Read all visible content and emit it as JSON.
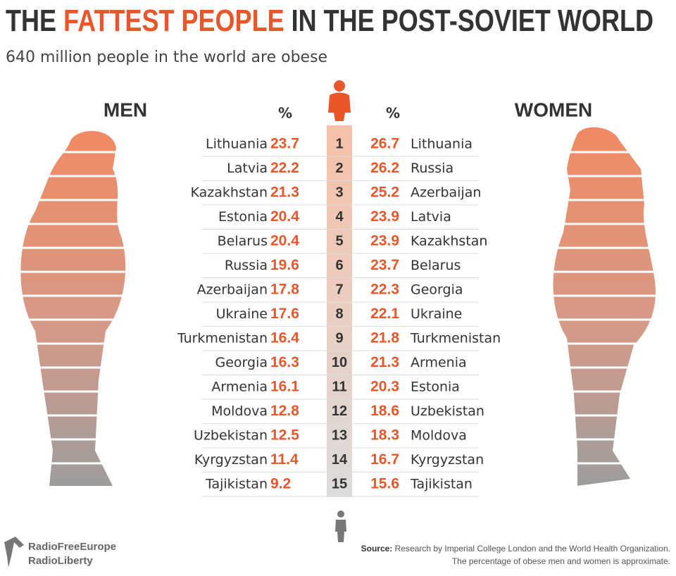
{
  "header": {
    "title_start": "THE",
    "title_highlight": "FATTEST PEOPLE",
    "title_end": "IN THE POST-SOVIET WORLD",
    "subtitle": "640 million people in the world are obese"
  },
  "men_label": "MEN",
  "women_label": "WOMEN",
  "percent_label": "%",
  "rows": [
    {
      "rank": 1,
      "men_country": "Lithuania",
      "men_value": 23.7,
      "women_value": 26.7,
      "women_country": "Lithuania"
    },
    {
      "rank": 2,
      "men_country": "Latvia",
      "men_value": 22.2,
      "women_value": 26.2,
      "women_country": "Russia"
    },
    {
      "rank": 3,
      "men_country": "Kazakhstan",
      "men_value": 21.3,
      "women_value": 25.2,
      "women_country": "Azerbaijan"
    },
    {
      "rank": 4,
      "men_country": "Estonia",
      "men_value": 20.4,
      "women_value": 23.9,
      "women_country": "Latvia"
    },
    {
      "rank": 5,
      "men_country": "Belarus",
      "men_value": 20.4,
      "women_value": 23.9,
      "women_country": "Kazakhstan"
    },
    {
      "rank": 6,
      "men_country": "Russia",
      "men_value": 19.6,
      "women_value": 23.7,
      "women_country": "Belarus"
    },
    {
      "rank": 7,
      "men_country": "Azerbaijan",
      "men_value": 17.8,
      "women_value": 22.3,
      "women_country": "Georgia"
    },
    {
      "rank": 8,
      "men_country": "Ukraine",
      "men_value": 17.6,
      "women_value": 22.1,
      "women_country": "Ukraine"
    },
    {
      "rank": 9,
      "men_country": "Turkmenistan",
      "men_value": 16.4,
      "women_value": 21.8,
      "women_country": "Turkmenistan"
    },
    {
      "rank": 10,
      "men_country": "Georgia",
      "men_value": 16.3,
      "women_value": 21.3,
      "women_country": "Armenia"
    },
    {
      "rank": 11,
      "men_country": "Armenia",
      "men_value": 16.1,
      "women_value": 20.3,
      "women_country": "Estonia"
    },
    {
      "rank": 12,
      "men_country": "Moldova",
      "men_value": 12.8,
      "women_value": 18.6,
      "women_country": "Uzbekistan"
    },
    {
      "rank": 13,
      "men_country": "Uzbekistan",
      "men_value": 12.5,
      "women_value": 18.3,
      "women_country": "Moldova"
    },
    {
      "rank": 14,
      "men_country": "Kyrgyzstan",
      "men_value": 11.4,
      "women_value": 16.7,
      "women_country": "Kyrgyzstan"
    },
    {
      "rank": 15,
      "men_country": "Tajikistan",
      "men_value": 9.2,
      "women_value": 15.6,
      "women_country": "Tajikistan"
    }
  ],
  "footer": {
    "logo_line1": "RadioFreeEurope",
    "logo_line2": "RadioLiberty",
    "source_label": "Source:",
    "source_text": "Research by Imperial College London and the World Health Organization.",
    "note": "The percentage of obese men and women is approximate."
  }
}
